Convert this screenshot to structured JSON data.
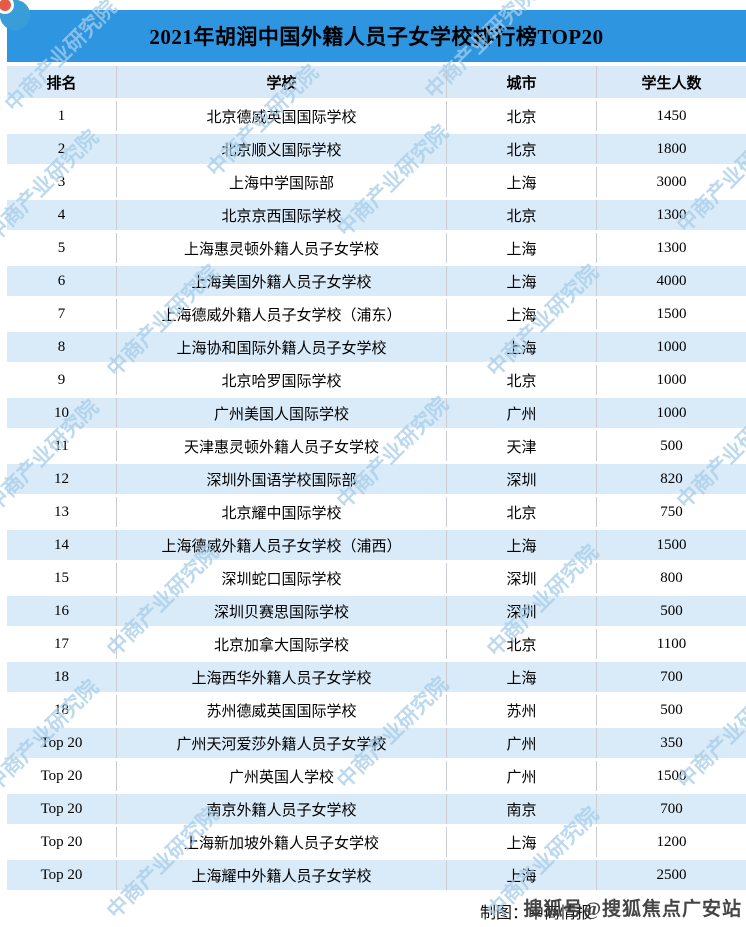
{
  "title": "2021年胡润中国外籍人员子女学校排行榜TOP20",
  "chart_data": {
    "type": "table",
    "title": "2021年胡润中国外籍人员子女学校排行榜TOP20",
    "columns": [
      "排名",
      "学校",
      "城市",
      "学生人数"
    ],
    "rows": [
      [
        "1",
        "北京德威英国国际学校",
        "北京",
        "1450"
      ],
      [
        "2",
        "北京顺义国际学校",
        "北京",
        "1800"
      ],
      [
        "3",
        "上海中学国际部",
        "上海",
        "3000"
      ],
      [
        "4",
        "北京京西国际学校",
        "北京",
        "1300"
      ],
      [
        "5",
        "上海惠灵顿外籍人员子女学校",
        "上海",
        "1300"
      ],
      [
        "6",
        "上海美国外籍人员子女学校",
        "上海",
        "4000"
      ],
      [
        "7",
        "上海德威外籍人员子女学校（浦东）",
        "上海",
        "1500"
      ],
      [
        "8",
        "上海协和国际外籍人员子女学校",
        "上海",
        "1000"
      ],
      [
        "9",
        "北京哈罗国际学校",
        "北京",
        "1000"
      ],
      [
        "10",
        "广州美国人国际学校",
        "广州",
        "1000"
      ],
      [
        "11",
        "天津惠灵顿外籍人员子女学校",
        "天津",
        "500"
      ],
      [
        "12",
        "深圳外国语学校国际部",
        "深圳",
        "820"
      ],
      [
        "13",
        "北京耀中国际学校",
        "北京",
        "750"
      ],
      [
        "14",
        "上海德威外籍人员子女学校（浦西）",
        "上海",
        "1500"
      ],
      [
        "15",
        "深圳蛇口国际学校",
        "深圳",
        "800"
      ],
      [
        "16",
        "深圳贝赛思国际学校",
        "深圳",
        "500"
      ],
      [
        "17",
        "北京加拿大国际学校",
        "北京",
        "1100"
      ],
      [
        "18",
        "上海西华外籍人员子女学校",
        "上海",
        "700"
      ],
      [
        "18",
        "苏州德威英国国际学校",
        "苏州",
        "500"
      ],
      [
        "Top 20",
        "广州天河爱莎外籍人员子女学校",
        "广州",
        "350"
      ],
      [
        "Top 20",
        "广州英国人学校",
        "广州",
        "1500"
      ],
      [
        "Top 20",
        "南京外籍人员子女学校",
        "南京",
        "700"
      ],
      [
        "Top 20",
        "上海新加坡外籍人员子女学校",
        "上海",
        "1200"
      ],
      [
        "Top 20",
        "上海耀中外籍人员子女学校",
        "上海",
        "2500"
      ]
    ]
  },
  "footer": {
    "credit": "制图：中商情报"
  },
  "watermark": {
    "brand": "中商产业研究院",
    "sohu": "搜狐号@搜狐焦点广安站"
  },
  "colors": {
    "title_bar": "#2e95e0",
    "row_stripe": "#d9eaf8",
    "header_bg": "#d9e9f7",
    "column_border": "#c9cdd1",
    "watermark_text": "#a6cde9",
    "logo_blue": "#3a9fd8",
    "logo_red": "#e25c49"
  }
}
